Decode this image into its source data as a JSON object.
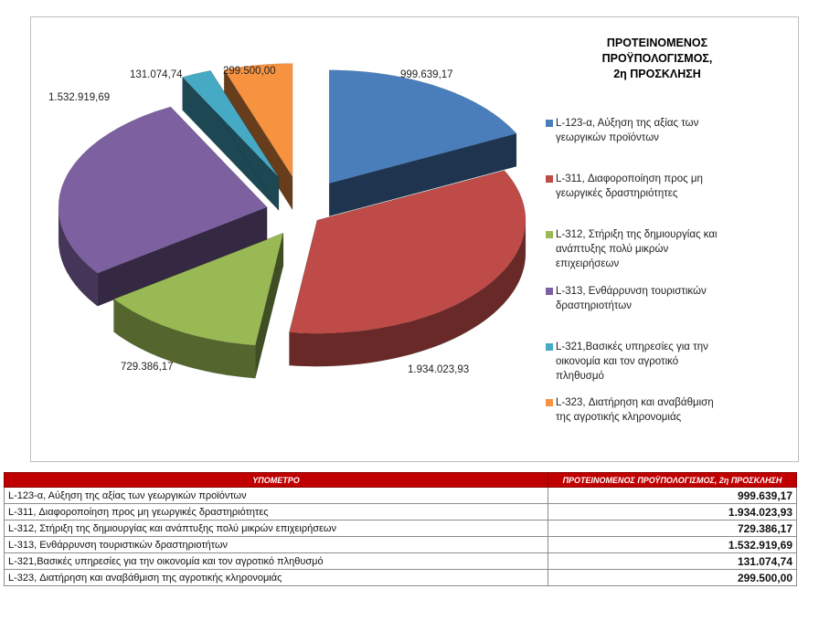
{
  "chart_data": {
    "type": "pie",
    "title": [
      "ΠΡΟΤΕΙΝΟΜΕΝΟΣ",
      "ΠΡΟΫΠΟΛΟΓΙΣΜΟΣ,",
      "2η ΠΡΟΣΚΛΗΣΗ"
    ],
    "legend_placement": "right",
    "slices": [
      {
        "legend": [
          "L-123-α, Αύξηση της αξίας των",
          "γεωργικών προϊόντων"
        ],
        "value": 999639.17,
        "label": "999.639,17",
        "color": "#4a7ebb"
      },
      {
        "legend": [
          "L-311, Διαφοροποίηση προς μη",
          "γεωργικές δραστηριότητες"
        ],
        "value": 1934023.93,
        "label": "1.934.023,93",
        "color": "#be4b48"
      },
      {
        "legend": [
          "L-312, Στήριξη της δημιουργίας και",
          "ανάπτυξης πολύ μικρών",
          "επιχειρήσεων"
        ],
        "value": 729386.17,
        "label": "729.386,17",
        "color": "#98b954"
      },
      {
        "legend": [
          "L-313, Ενθάρρυνση τουριστικών",
          "δραστηριοτήτων"
        ],
        "value": 1532919.69,
        "label": "1.532.919,69",
        "color": "#7d60a0"
      },
      {
        "legend": [
          "L-321,Βασικές υπηρεσίες για την",
          "οικονομία και τον αγροτικό",
          "πληθυσμό"
        ],
        "value": 131074.74,
        "label": "131.074,74",
        "color": "#46aac5"
      },
      {
        "legend": [
          "L-323, Διατήρηση και αναβάθμιση",
          "της αγροτικής κληρονομιάς"
        ],
        "value": 299500.0,
        "label": "299.500,00",
        "color": "#f69240"
      }
    ]
  },
  "table": {
    "headers": [
      "ΥΠΟΜΕΤΡΟ",
      "ΠΡΟΤΕΙΝΟΜΕΝΟΣ ΠΡΟΫΠΟΛΟΓΙΣΜΟΣ, 2η ΠΡΟΣΚΛΗΣΗ"
    ],
    "rows": [
      [
        "L-123-α, Αύξηση της αξίας των γεωργικών προϊόντων",
        "999.639,17"
      ],
      [
        "L-311, Διαφοροποίηση προς μη γεωργικές δραστηριότητες",
        "1.934.023,93"
      ],
      [
        "L-312, Στήριξη της δημιουργίας και ανάπτυξης πολύ μικρών επιχειρήσεων",
        "729.386,17"
      ],
      [
        "L-313, Ενθάρρυνση τουριστικών δραστηριοτήτων",
        "1.532.919,69"
      ],
      [
        "L-321,Βασικές υπηρεσίες για την οικονομία και τον αγροτικό πληθυσμό",
        "131.074,74"
      ],
      [
        "L-323, Διατήρηση και αναβάθμιση της αγροτικής κληρονομιάς",
        "299.500,00"
      ]
    ]
  }
}
